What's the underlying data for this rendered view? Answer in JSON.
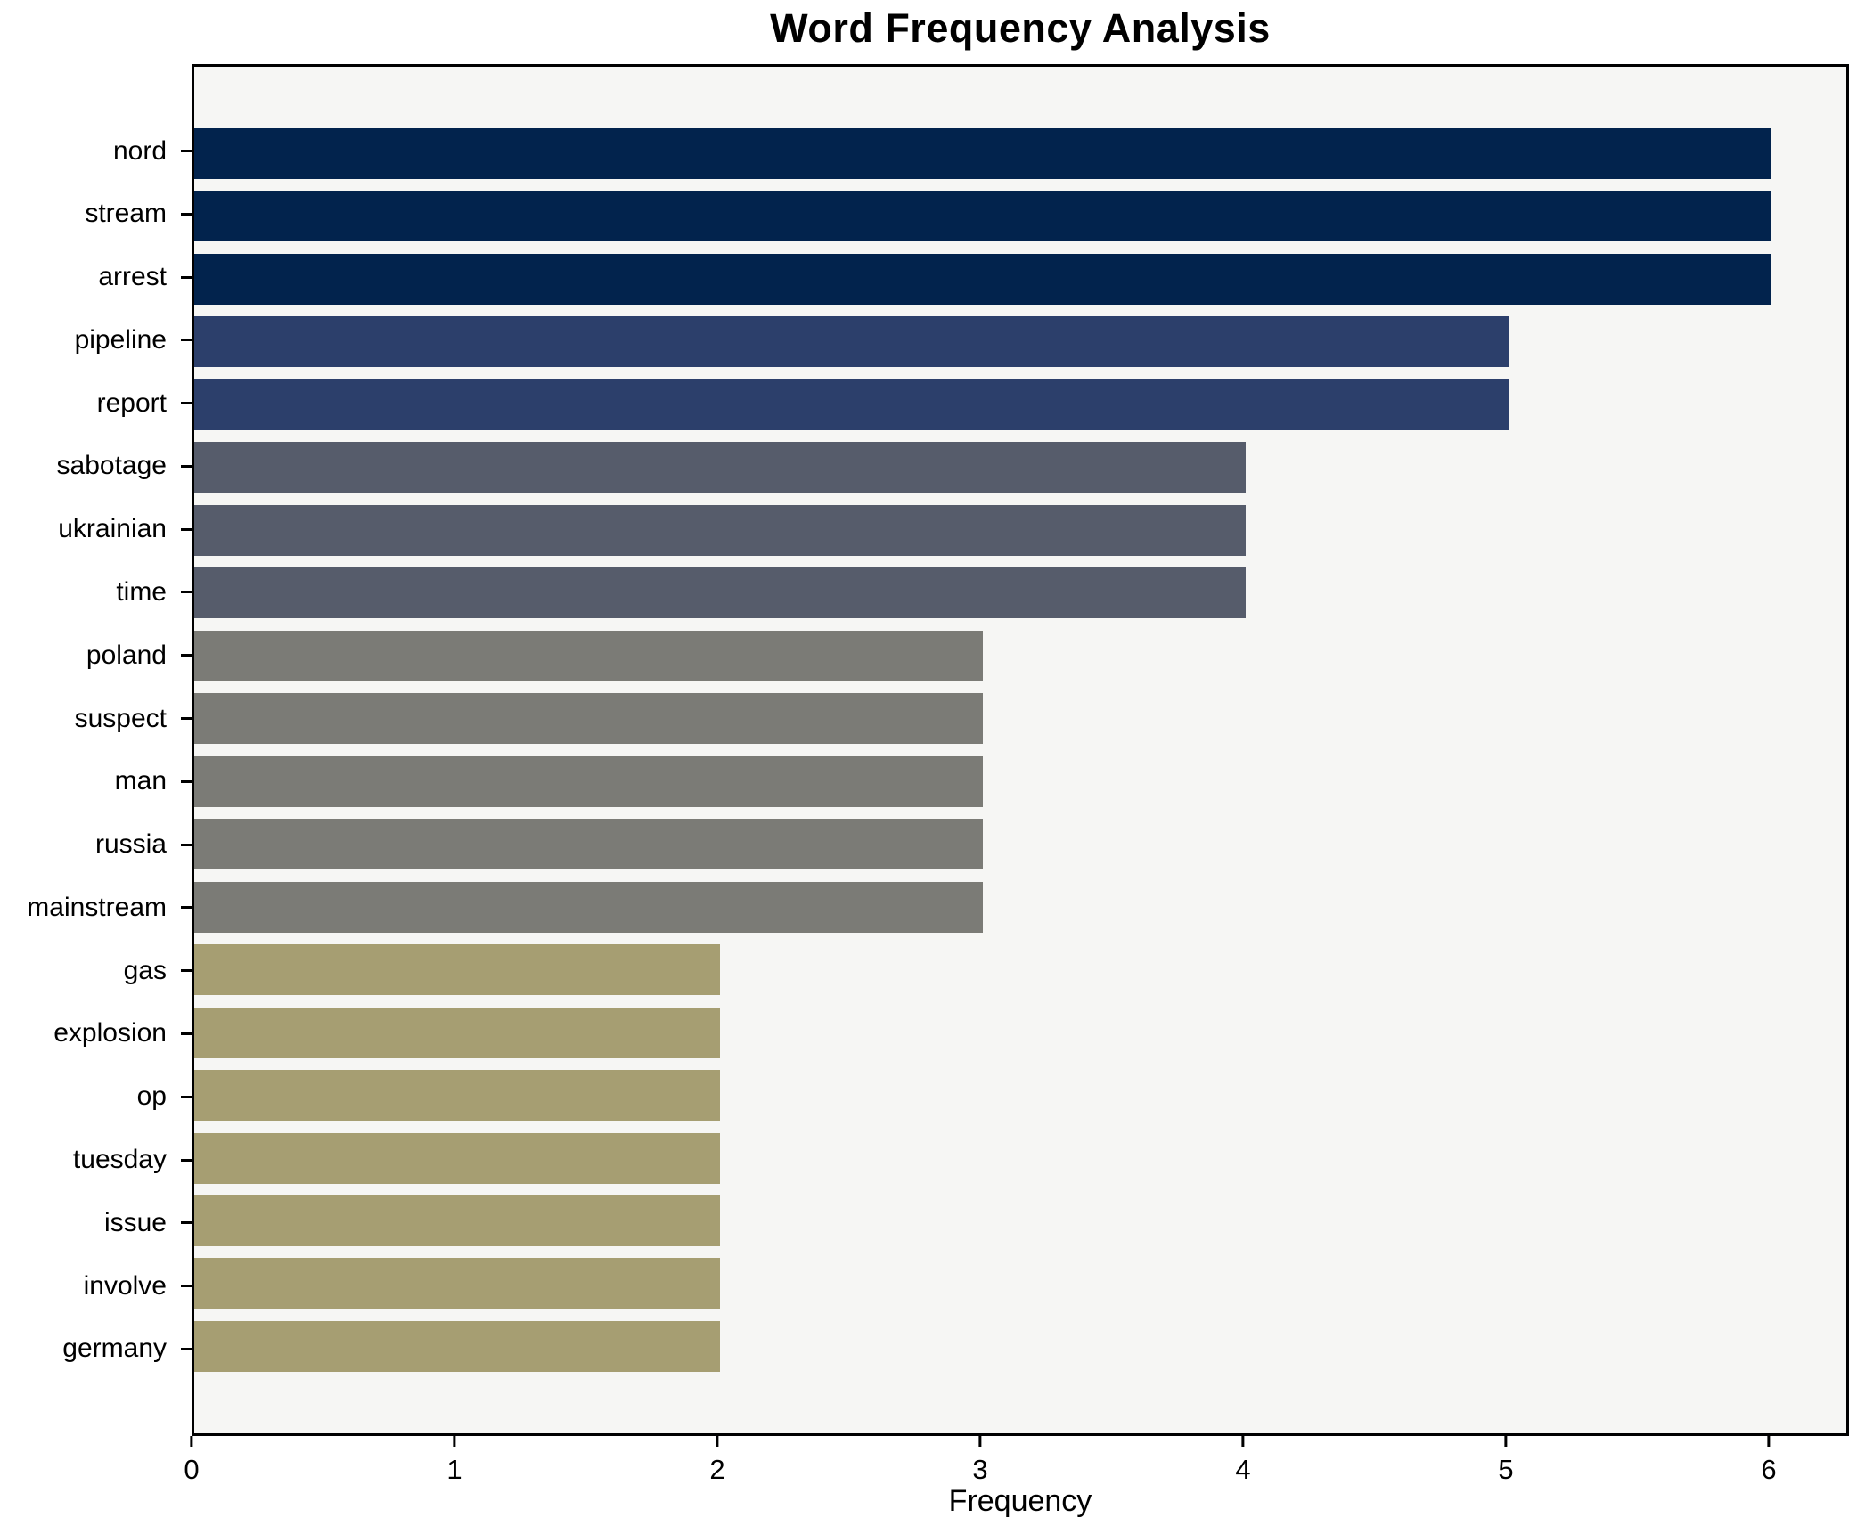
{
  "title": "Word Frequency Analysis",
  "chart_data": {
    "type": "bar",
    "orientation": "horizontal",
    "title": "Word Frequency Analysis",
    "xlabel": "Frequency",
    "ylabel": "",
    "xlim": [
      0,
      6.3
    ],
    "xticks": [
      0,
      1,
      2,
      3,
      4,
      5,
      6
    ],
    "grid": false,
    "legend": "none",
    "categories": [
      "nord",
      "stream",
      "arrest",
      "pipeline",
      "report",
      "sabotage",
      "ukrainian",
      "time",
      "poland",
      "suspect",
      "man",
      "russia",
      "mainstream",
      "gas",
      "explosion",
      "op",
      "tuesday",
      "issue",
      "involve",
      "germany"
    ],
    "values": [
      6,
      6,
      6,
      5,
      5,
      4,
      4,
      4,
      3,
      3,
      3,
      3,
      3,
      2,
      2,
      2,
      2,
      2,
      2,
      2
    ],
    "bar_colors": [
      "#02234d",
      "#02234d",
      "#02234d",
      "#2c3f6b",
      "#2c3f6b",
      "#565c6b",
      "#565c6b",
      "#565c6b",
      "#7b7b76",
      "#7b7b76",
      "#7b7b76",
      "#7b7b76",
      "#7b7b76",
      "#a69e72",
      "#a69e72",
      "#a69e72",
      "#a69e72",
      "#a69e72",
      "#a69e72",
      "#a69e72"
    ]
  },
  "colors": {
    "figure_bg": "#ffffff",
    "plot_bg": "#f6f6f4",
    "spine": "#000000",
    "text": "#000000"
  }
}
